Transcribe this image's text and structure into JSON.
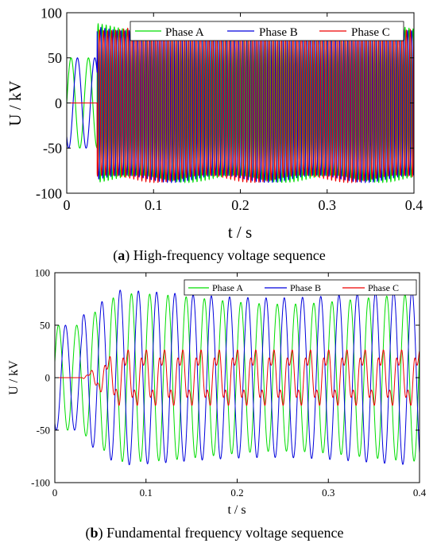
{
  "chart_data": [
    {
      "type": "line",
      "caption_letter": "a",
      "caption_text": "High-frequency voltage sequence",
      "xlabel": "t / s",
      "ylabel": "U / kV",
      "xlim": [
        0,
        0.4
      ],
      "ylim": [
        -100,
        100
      ],
      "xticks": [
        "0",
        "0.1",
        "0.2",
        "0.3",
        "0.4"
      ],
      "yticks": [
        "100",
        "50",
        "0",
        "-50",
        "-100"
      ],
      "legend_position": "top-right",
      "grid": false,
      "series": [
        {
          "name": "Phase A",
          "color": "#00dd00",
          "pre_switch": "50 Hz sine, amplitude 50, phase 0 (from t=0 to t≈0.035)",
          "post_switch": "high-frequency oscillation, amplitude ≈ 88 (t≈0.035 to 0.4)"
        },
        {
          "name": "Phase B",
          "color": "#0000dd",
          "pre_switch": "50 Hz sine, amplitude 50, phase -120° (from t=0 to t≈0.035)",
          "post_switch": "high-frequency oscillation, amplitude ≈ 88 (t≈0.035 to 0.4)"
        },
        {
          "name": "Phase C",
          "color": "#ee0000",
          "pre_switch": "0 (from t=0 to t≈0.035)",
          "post_switch": "high-frequency oscillation, amplitude ≈ 88 (t≈0.035 to 0.4)"
        }
      ],
      "switch_time": 0.035
    },
    {
      "type": "line",
      "caption_letter": "b",
      "caption_text": "Fundamental frequency voltage sequence",
      "xlabel": "t / s",
      "ylabel": "U / kV",
      "xlim": [
        0,
        0.4
      ],
      "ylim": [
        -100,
        100
      ],
      "xticks": [
        "0",
        "0.1",
        "0.2",
        "0.3",
        "0.4"
      ],
      "yticks": [
        "100",
        "50",
        "0",
        "-50",
        "-100"
      ],
      "legend_position": "top-right",
      "grid": false,
      "series": [
        {
          "name": "Phase A",
          "color": "#00dd00",
          "pre_switch": "50 Hz sine, amplitude 50",
          "post_switch": "≈ 50 Hz sine, amplitude ≈ 70–80"
        },
        {
          "name": "Phase B",
          "color": "#0000dd",
          "pre_switch": "50 Hz sine, amplitude 50, shifted",
          "post_switch": "≈ 50 Hz sine, amplitude ≈ 75–85"
        },
        {
          "name": "Phase C",
          "color": "#ee0000",
          "pre_switch": "0",
          "post_switch": "distorted ≈ 50 Hz wave, amplitude ≈ 25–35"
        }
      ],
      "switch_time": 0.03
    }
  ]
}
